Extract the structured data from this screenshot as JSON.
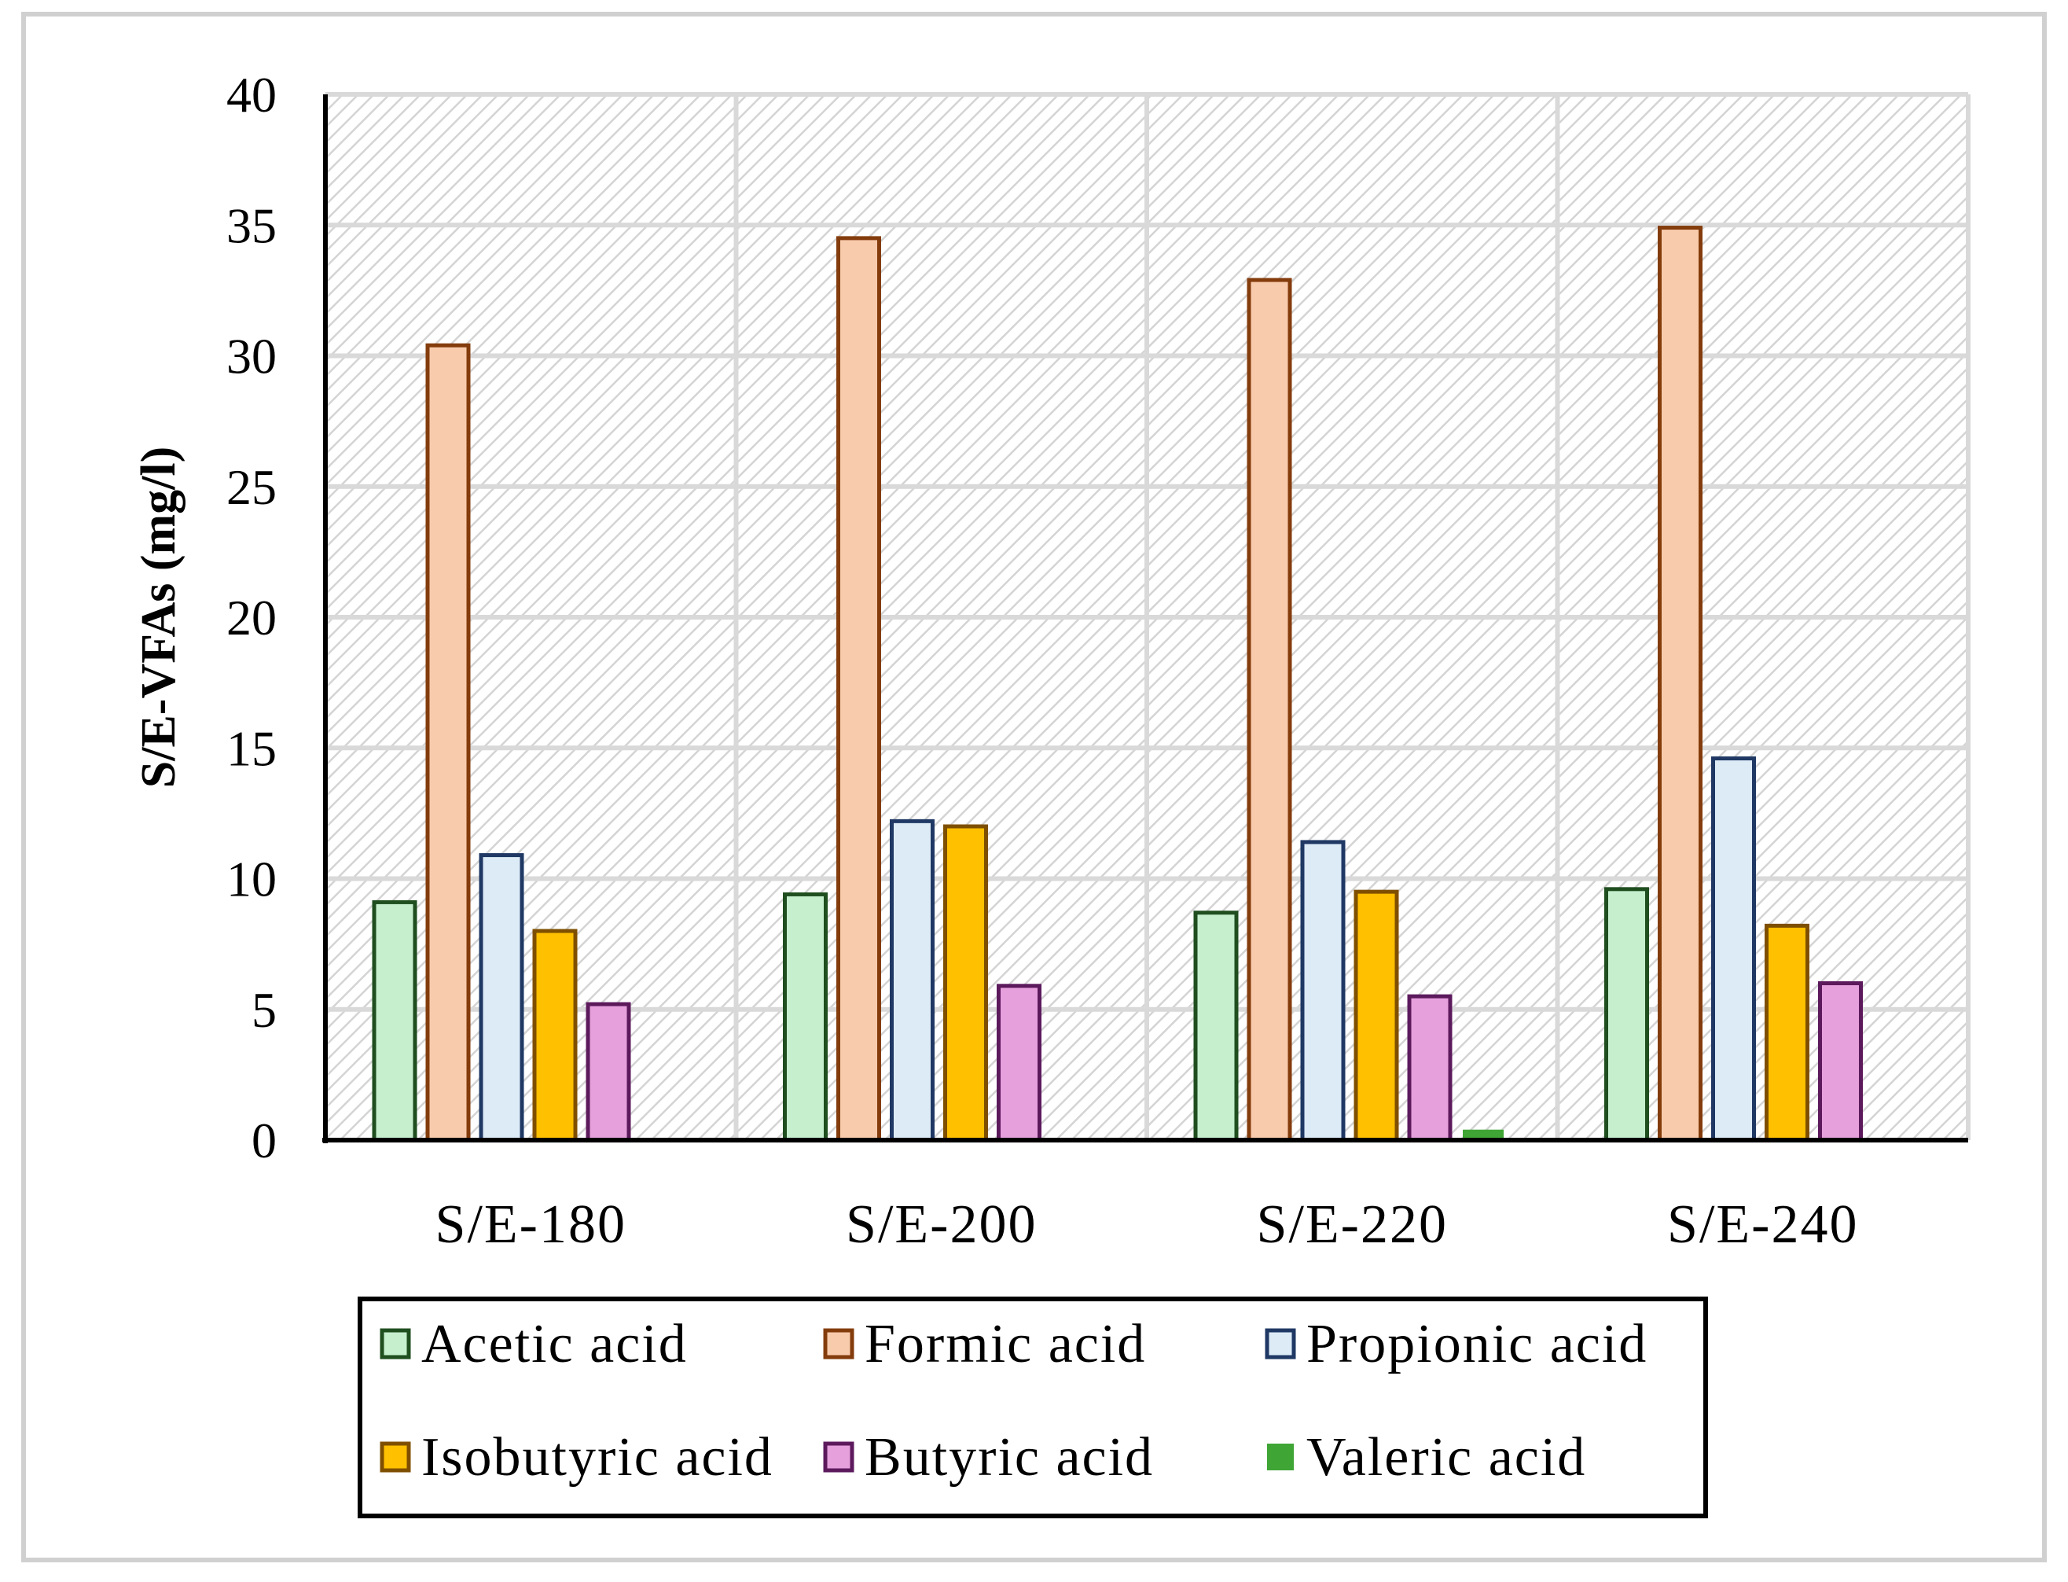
{
  "chart_data": {
    "type": "bar",
    "title": "",
    "xlabel": "",
    "ylabel": "S/E-VFAs (mg/l)",
    "ylim": [
      0,
      40
    ],
    "yticks": [
      0,
      5,
      10,
      15,
      20,
      25,
      30,
      35,
      40
    ],
    "grid": true,
    "legend_position": "bottom",
    "categories": [
      "S/E-180",
      "S/E-200",
      "S/E-220",
      "S/E-240"
    ],
    "series": [
      {
        "name": "Acetic acid",
        "fill": "#c6efce",
        "stroke": "#1f4e1f",
        "values": [
          9.1,
          9.4,
          8.7,
          9.6
        ]
      },
      {
        "name": "Formic acid",
        "fill": "#f8cbad",
        "stroke": "#843c0c",
        "values": [
          30.4,
          34.5,
          32.9,
          34.9
        ]
      },
      {
        "name": "Propionic acid",
        "fill": "#ddebf7",
        "stroke": "#1f3864",
        "values": [
          10.9,
          12.2,
          11.4,
          14.6
        ]
      },
      {
        "name": "Isobutyric acid",
        "fill": "#ffc000",
        "stroke": "#7f4f00",
        "values": [
          8.0,
          12.0,
          9.5,
          8.2
        ]
      },
      {
        "name": "Butyric acid",
        "fill": "#e6a0dc",
        "stroke": "#5c1a5c",
        "values": [
          5.2,
          5.9,
          5.5,
          6.0
        ]
      },
      {
        "name": "Valeric acid",
        "fill": "#3fa535",
        "stroke": "#3fa535",
        "values": [
          0,
          0,
          0.4,
          0
        ]
      }
    ]
  }
}
